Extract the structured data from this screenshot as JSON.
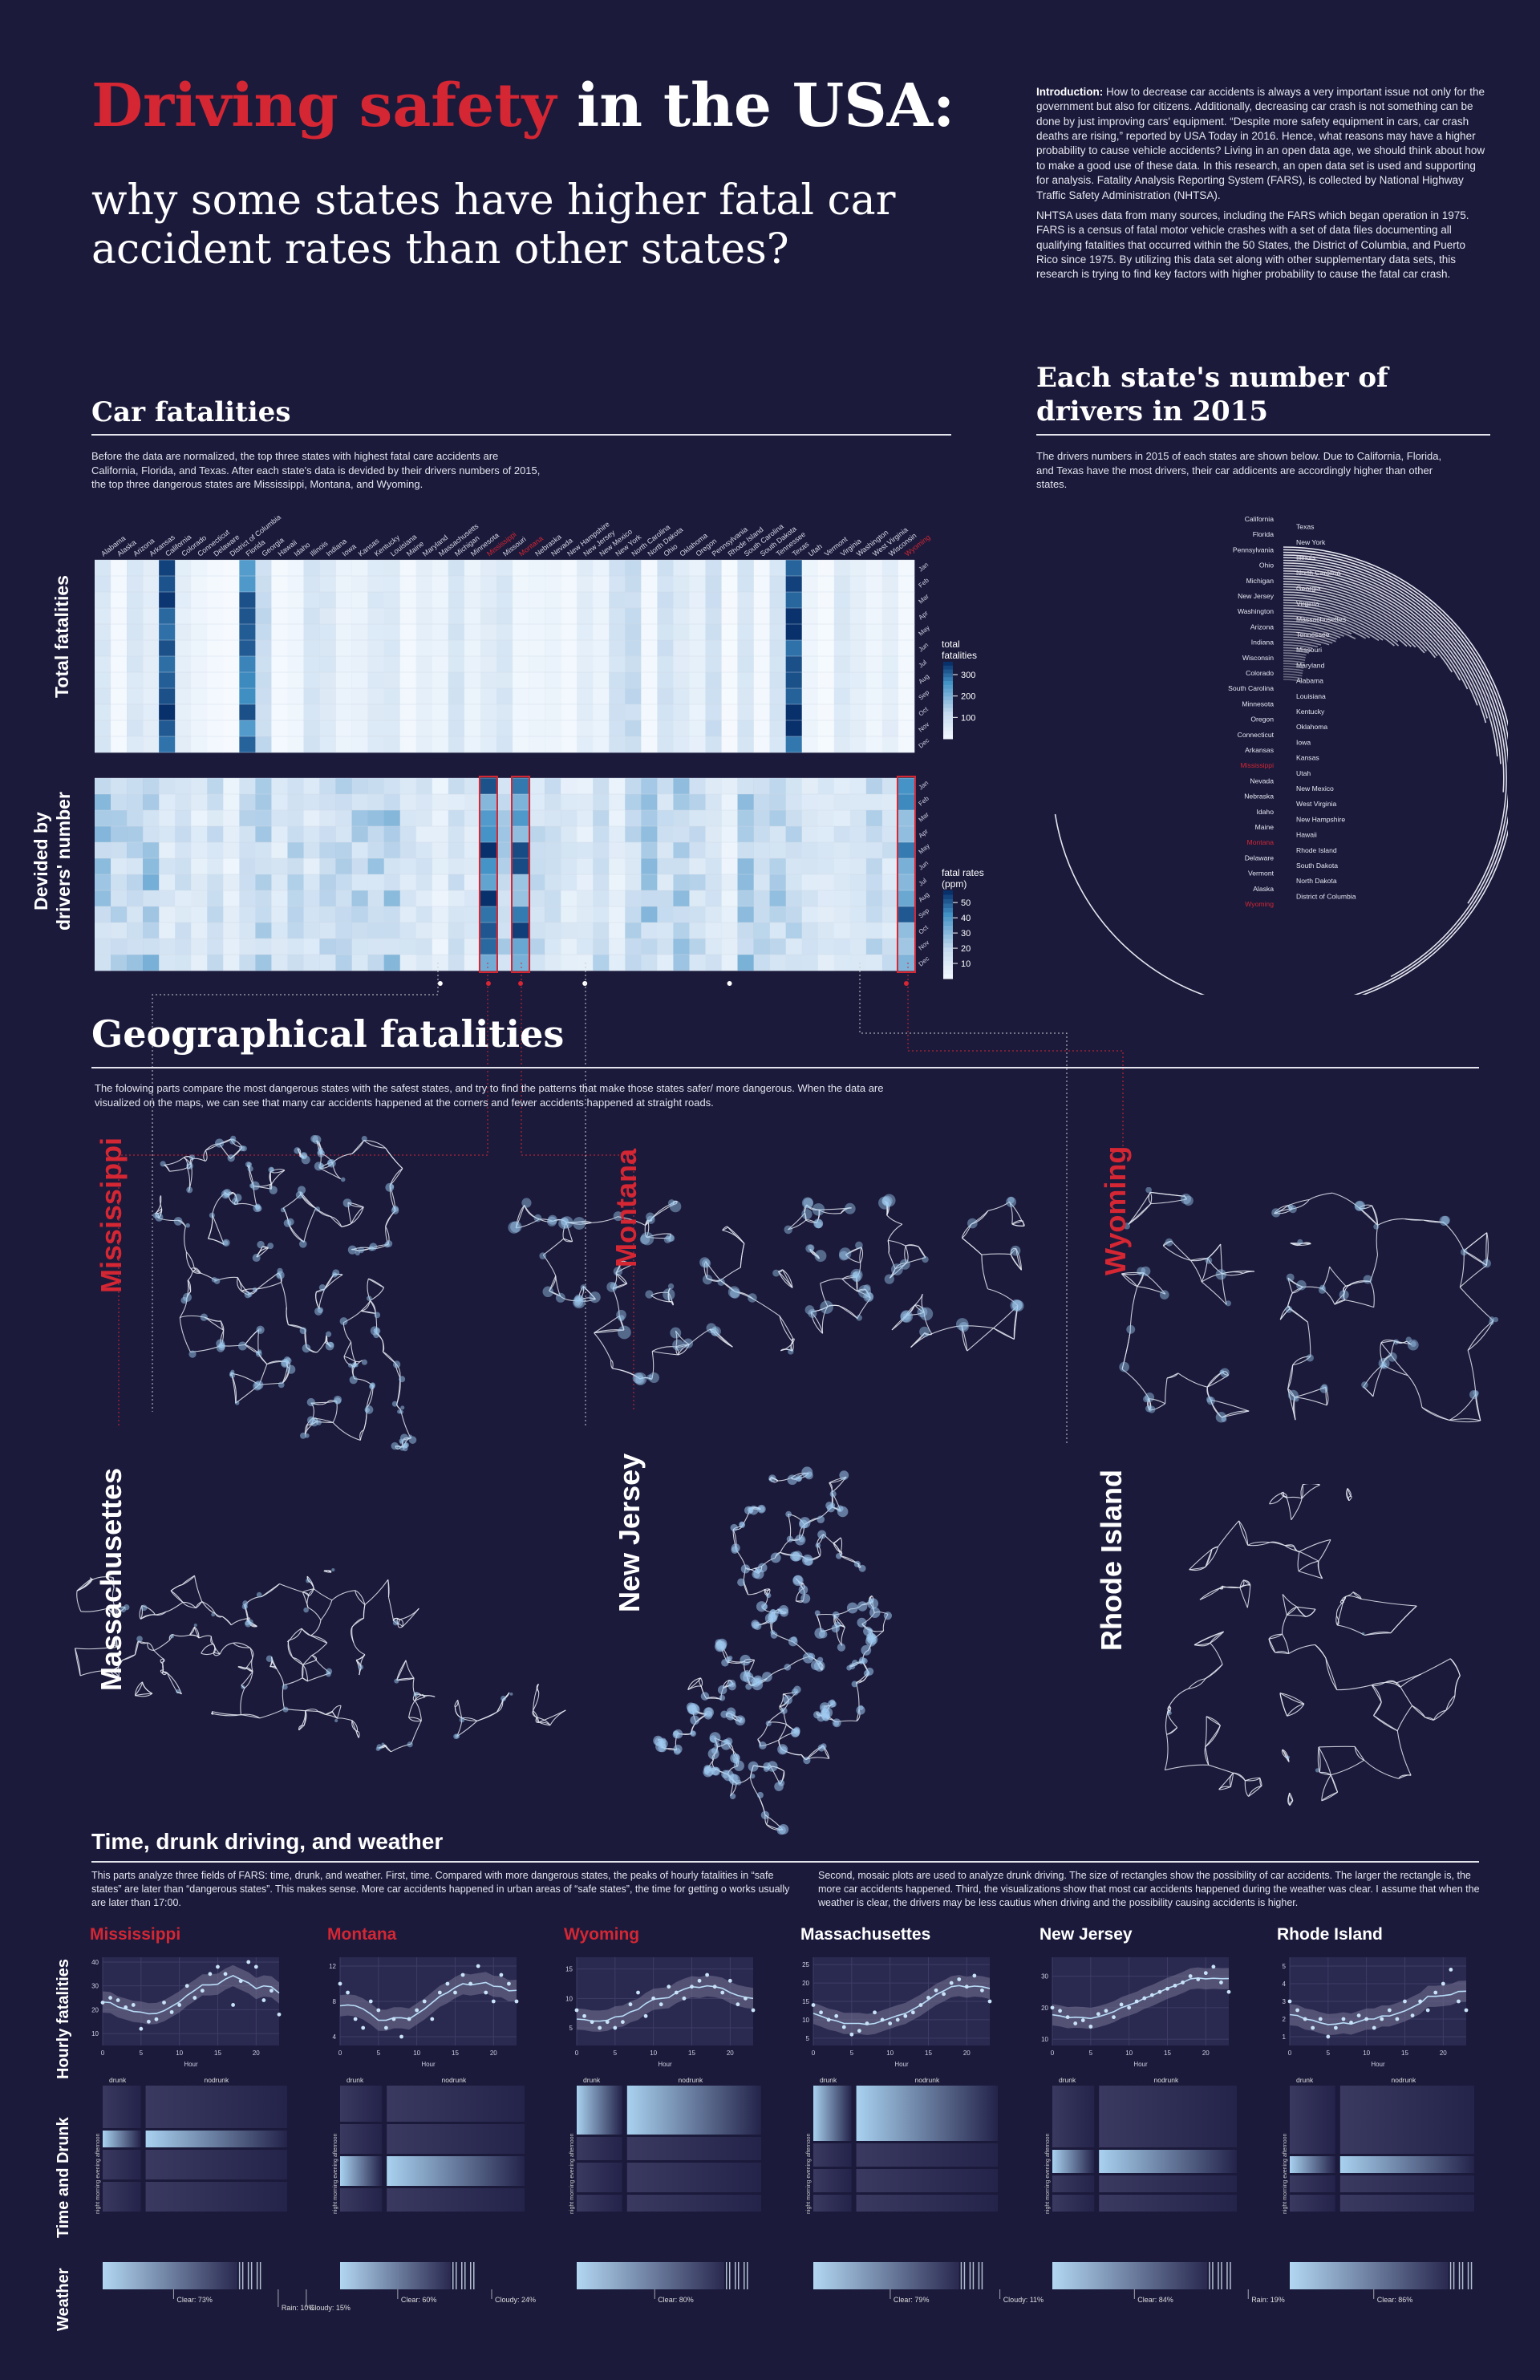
{
  "header": {
    "title_red": "Driving safety",
    "title_white": "in the USA:",
    "subtitle": "why some states have higher fatal car accident rates than other states?"
  },
  "intro": {
    "label": "Introduction:",
    "p1": "How to decrease car accidents is always a very important issue not only for the government but also for citizens. Additionally, decreasing car crash is not something can be done by just improving cars' equipment. “Despite more safety equipment in cars, car crash deaths are rising,” reported by USA Today in 2016. Hence, what reasons may have a higher probability to cause vehicle accidents? Living in an open data age, we should think about how to make a good use of these data. In this research, an open data set is used and supporting for analysis. Fatality Analysis Reporting System (FARS), is collected by National Highway Traffic Safety Administration (NHTSA).",
    "p2": "NHTSA uses data from many sources, including the FARS which began operation in 1975. FARS is a census of fatal motor vehicle crashes with a set of data files documenting all qualifying fatalities that occurred within the 50 States, the District of Columbia, and Puerto Rico since 1975. By utilizing this data set along with other supplementary data sets, this research is trying to find key factors with higher probability to cause the fatal car crash."
  },
  "car_fatalities": {
    "title": "Car fatalities",
    "desc": "Before the data are normalized, the top three states with highest fatal care accidents are California, Florida, and Texas. After each state's data is devided by their drivers numbers of 2015, the top three dangerous states are Mississippi, Montana, and Wyoming.",
    "row_label_total": "Total fatalities",
    "row_label_rate_1": "Devided by",
    "row_label_rate_2": "drivers' number",
    "legend_total_title_1": "total",
    "legend_total_title_2": "fatalities",
    "legend_rate_title_1": "fatal rates",
    "legend_rate_title_2": "(ppm)"
  },
  "drivers": {
    "title_1": "Each state's number of",
    "title_2": "drivers in 2015",
    "desc": "The drivers numbers in 2015 of each states are shown below. Due to California, Florida, and Texas have the most drivers, their car addicents are accordingly higher than other states."
  },
  "geo": {
    "title": "Geographical fatalities",
    "desc": "The folowing parts compare the most dangerous states with the safest states, and try to find the patterns that make those states safer/ more dangerous. When the data are visualized on the maps, we can see that many car accidents happened at the corners and fewer accidents happened at straight roads.",
    "states": [
      "Mississippi",
      "Montana",
      "Wyoming",
      "Massachusettes",
      "New Jersey",
      "Rhode Island"
    ]
  },
  "tdw": {
    "title": "Time, drunk driving, and weather",
    "desc1": "This parts analyze three fields of FARS: time, drunk, and weather. First, time. Compared with more dangerous states, the peaks of hourly fatalities in “safe states” are later than “dangerous states”. This makes sense. More car accidents happened in urban areas of “safe states”, the time for getting o  works usually are later than 17:00.",
    "desc2": "Second, mosaic plots are used to analyze drunk driving. The size of rectangles show the possibility of car accidents.  The larger the rectangle is, the more car accidents happened. Third, the visualizations show that most car accidents happened during the weather was clear. I assume that when the weather is clear, the drivers may be less cautius when driving and the possibility causing accidents is higher.",
    "row_hourly": "Hourly fatalities",
    "row_drunk": "Time and Drunk",
    "row_weather": "Weather",
    "axis_hour": "Hour",
    "drunk_label": "drunk",
    "nodrunk_label": "nodrunk"
  },
  "colors": {
    "background": "#1b1a3b",
    "accent_red": "#d42633",
    "heat_high": "#08519c",
    "heat_low": "#f7fbff"
  },
  "chart_data": [
    {
      "type": "heatmap",
      "name": "total fatalities",
      "states": [
        "Alabama",
        "Alaska",
        "Arizona",
        "Arkansas",
        "California",
        "Colorado",
        "Connecticut",
        "Delaware",
        "District of Columbia",
        "Florida",
        "Georgia",
        "Hawaii",
        "Idaho",
        "Illinois",
        "Indiana",
        "Iowa",
        "Kansas",
        "Kentucky",
        "Louisiana",
        "Maine",
        "Maryland",
        "Massachusetts",
        "Michigan",
        "Minnesota",
        "Mississippi",
        "Missouri",
        "Montana",
        "Nebraska",
        "Nevada",
        "New Hampshire",
        "New Jersey",
        "New Mexico",
        "New York",
        "North Carolina",
        "North Dakota",
        "Ohio",
        "Oklahoma",
        "Oregon",
        "Pennsylvania",
        "Rhode Island",
        "South Carolina",
        "South Dakota",
        "Tennessee",
        "Texas",
        "Utah",
        "Vermont",
        "Virginia",
        "Washington",
        "West Virginia",
        "Wisconsin",
        "Wyoming"
      ],
      "row_labels": [
        "Jan",
        "Feb",
        "Mar",
        "Apr",
        "May",
        "Jun",
        "Jul",
        "Aug",
        "Sep",
        "Oct",
        "Nov",
        "Dec"
      ],
      "legend_ticks": [
        100,
        200,
        300
      ],
      "column_levels": [
        80,
        10,
        80,
        50,
        330,
        50,
        25,
        10,
        3,
        290,
        120,
        10,
        20,
        90,
        75,
        30,
        35,
        70,
        70,
        15,
        45,
        30,
        90,
        35,
        60,
        80,
        20,
        25,
        30,
        12,
        55,
        30,
        95,
        120,
        12,
        100,
        65,
        40,
        110,
        6,
        85,
        12,
        90,
        340,
        25,
        6,
        70,
        50,
        25,
        50,
        12
      ]
    },
    {
      "type": "heatmap",
      "name": "fatal rates",
      "states": [
        "Alabama",
        "Alaska",
        "Arizona",
        "Arkansas",
        "California",
        "Colorado",
        "Connecticut",
        "Delaware",
        "District of Columbia",
        "Florida",
        "Georgia",
        "Hawaii",
        "Idaho",
        "Illinois",
        "Indiana",
        "Iowa",
        "Kansas",
        "Kentucky",
        "Louisiana",
        "Maine",
        "Maryland",
        "Massachusetts",
        "Michigan",
        "Minnesota",
        "Mississippi",
        "Missouri",
        "Montana",
        "Nebraska",
        "Nevada",
        "New Hampshire",
        "New Jersey",
        "New Mexico",
        "New York",
        "North Carolina",
        "North Dakota",
        "Ohio",
        "Oklahoma",
        "Oregon",
        "Pennsylvania",
        "Rhode Island",
        "South Carolina",
        "South Dakota",
        "Tennessee",
        "Texas",
        "Utah",
        "Vermont",
        "Virginia",
        "Washington",
        "West Virginia",
        "Wisconsin",
        "Wyoming"
      ],
      "row_labels": [
        "Jan",
        "Feb",
        "Mar",
        "Apr",
        "May",
        "Jun",
        "Jul",
        "Aug",
        "Sep",
        "Oct",
        "Nov",
        "Dec"
      ],
      "legend_ticks": [
        10,
        20,
        30,
        40,
        50
      ],
      "highlighted": [
        "Mississippi",
        "Montana",
        "Wyoming"
      ],
      "column_levels": [
        22,
        18,
        20,
        24,
        12,
        14,
        8,
        15,
        6,
        18,
        19,
        10,
        20,
        12,
        16,
        18,
        19,
        20,
        22,
        12,
        12,
        6,
        14,
        10,
        42,
        20,
        40,
        16,
        14,
        10,
        9,
        18,
        7,
        18,
        22,
        14,
        21,
        16,
        12,
        6,
        24,
        18,
        20,
        18,
        12,
        10,
        13,
        10,
        18,
        14,
        38
      ]
    },
    {
      "type": "bar",
      "name": "drivers in 2015",
      "categories": [
        "California",
        "Texas",
        "Florida",
        "New York",
        "Pennsylvania",
        "Illinois",
        "Ohio",
        "North Carolina",
        "Michigan",
        "Georgia",
        "New Jersey",
        "Virginia",
        "Washington",
        "Massachusettes",
        "Arizona",
        "Tennessee",
        "Indiana",
        "Missouri",
        "Wisconsin",
        "Maryland",
        "Colorado",
        "Alabama",
        "South Carolina",
        "Louisiana",
        "Minnesota",
        "Kentucky",
        "Oregon",
        "Oklahoma",
        "Connecticut",
        "Iowa",
        "Arkansas",
        "Kansas",
        "Mississippi",
        "Utah",
        "Nevada",
        "New Mexico",
        "Nebraska",
        "West Virginia",
        "Idaho",
        "New Hampshire",
        "Maine",
        "Hawaii",
        "Montana",
        "Rhode Island",
        "Delaware",
        "South Dakota",
        "Vermont",
        "North Dakota",
        "Alaska",
        "District of Columbia",
        "Wyoming"
      ],
      "values": [
        24.8,
        15.9,
        14.4,
        11.8,
        8.9,
        8.2,
        8.0,
        7.0,
        7.1,
        6.6,
        6.1,
        5.8,
        5.5,
        4.9,
        4.9,
        4.6,
        4.6,
        4.3,
        4.2,
        4.1,
        3.8,
        3.9,
        3.8,
        3.4,
        3.3,
        3.0,
        2.9,
        2.4,
        2.6,
        2.2,
        2.1,
        2.0,
        2.0,
        1.9,
        1.8,
        1.5,
        1.4,
        1.2,
        1.2,
        1.1,
        1.0,
        0.9,
        0.8,
        0.8,
        0.7,
        0.6,
        0.5,
        0.5,
        0.5,
        0.5,
        0.4
      ]
    },
    {
      "type": "scatter",
      "name": "hourly fatalities",
      "panels": [
        {
          "state": "Mississippi",
          "red": true,
          "yticks": [
            10,
            20,
            30,
            40
          ],
          "ylim": [
            5,
            42
          ],
          "x": [
            0,
            1,
            2,
            3,
            4,
            5,
            6,
            7,
            8,
            9,
            10,
            11,
            12,
            13,
            14,
            15,
            16,
            17,
            18,
            19,
            20,
            21,
            22,
            23
          ],
          "y": [
            23,
            25,
            24,
            21,
            22,
            12,
            15,
            16,
            23,
            19,
            22,
            30,
            25,
            28,
            35,
            38,
            35,
            22,
            32,
            40,
            38,
            24,
            28,
            18
          ]
        },
        {
          "state": "Montana",
          "red": true,
          "yticks": [
            4,
            8,
            12
          ],
          "ylim": [
            3,
            13
          ],
          "x": [
            0,
            1,
            2,
            3,
            4,
            5,
            6,
            7,
            8,
            9,
            10,
            11,
            12,
            13,
            14,
            15,
            16,
            17,
            18,
            19,
            20,
            21,
            22,
            23
          ],
          "y": [
            10,
            9,
            6,
            5,
            8,
            7,
            5,
            6,
            4,
            6,
            7,
            8,
            6,
            9,
            10,
            9,
            11,
            10,
            12,
            9,
            8,
            11,
            10,
            8
          ]
        },
        {
          "state": "Wyoming",
          "red": true,
          "yticks": [
            5,
            10,
            15
          ],
          "ylim": [
            2,
            17
          ],
          "x": [
            0,
            1,
            2,
            3,
            4,
            5,
            6,
            7,
            8,
            9,
            10,
            11,
            12,
            13,
            14,
            15,
            16,
            17,
            18,
            19,
            20,
            21,
            22,
            23
          ],
          "y": [
            8,
            7,
            6,
            5,
            6,
            5,
            6,
            9,
            11,
            7,
            10,
            9,
            12,
            11,
            10,
            12,
            13,
            14,
            12,
            11,
            13,
            9,
            10,
            8
          ]
        },
        {
          "state": "Massachusettes",
          "red": false,
          "yticks": [
            5,
            10,
            15,
            20,
            25
          ],
          "ylim": [
            3,
            27
          ],
          "x": [
            0,
            1,
            2,
            3,
            4,
            5,
            6,
            7,
            8,
            9,
            10,
            11,
            12,
            13,
            14,
            15,
            16,
            17,
            18,
            19,
            20,
            21,
            22,
            23
          ],
          "y": [
            14,
            12,
            10,
            11,
            8,
            6,
            7,
            9,
            12,
            10,
            9,
            10,
            11,
            12,
            14,
            16,
            18,
            17,
            20,
            21,
            19,
            22,
            18,
            15
          ]
        },
        {
          "state": "New Jersey",
          "red": false,
          "yticks": [
            10,
            20,
            30
          ],
          "ylim": [
            8,
            36
          ],
          "x": [
            0,
            1,
            2,
            3,
            4,
            5,
            6,
            7,
            8,
            9,
            10,
            11,
            12,
            13,
            14,
            15,
            16,
            17,
            18,
            19,
            20,
            21,
            22,
            23
          ],
          "y": [
            20,
            19,
            17,
            15,
            16,
            14,
            18,
            19,
            17,
            21,
            20,
            22,
            23,
            24,
            25,
            26,
            27,
            28,
            30,
            29,
            31,
            33,
            28,
            25
          ]
        },
        {
          "state": "Rhode Island",
          "red": false,
          "yticks": [
            1,
            2,
            3,
            4,
            5
          ],
          "ylim": [
            0.5,
            5.5
          ],
          "x": [
            0,
            1,
            2,
            3,
            4,
            5,
            6,
            7,
            8,
            9,
            10,
            11,
            12,
            13,
            14,
            15,
            16,
            17,
            18,
            19,
            20,
            21,
            22,
            23
          ],
          "y": [
            3,
            2.5,
            2,
            1.5,
            2,
            1,
            1.5,
            2,
            1.8,
            2.2,
            2,
            1.5,
            2,
            2.5,
            2,
            3,
            2.2,
            3,
            2.5,
            3.5,
            4,
            4.8,
            3,
            2.5
          ]
        }
      ],
      "xticks": [
        0,
        5,
        10,
        15,
        20
      ]
    },
    {
      "type": "mosaic",
      "name": "time and drunk",
      "categories_x": [
        "drunk",
        "nodrunk"
      ],
      "categories_y": [
        "night",
        "morning",
        "evening",
        "afternoon"
      ]
    },
    {
      "type": "bar",
      "name": "weather",
      "panels": [
        {
          "state": "Mississippi",
          "labels": [
            {
              "text": "Clear: 73%",
              "share": 73
            },
            {
              "text": "Rain: 10%",
              "share": 10
            },
            {
              "text": "Cloudy: 15%",
              "share": 15
            }
          ]
        },
        {
          "state": "Montana",
          "labels": [
            {
              "text": "Clear: 60%",
              "share": 60
            },
            {
              "text": "Cloudy: 24%",
              "share": 24
            }
          ]
        },
        {
          "state": "Wyoming",
          "labels": [
            {
              "text": "Clear: 80%",
              "share": 80
            }
          ]
        },
        {
          "state": "Massachusettes",
          "labels": [
            {
              "text": "Clear: 79%",
              "share": 79
            },
            {
              "text": "Cloudy: 11%",
              "share": 11
            }
          ]
        },
        {
          "state": "New Jersey",
          "labels": [
            {
              "text": "Clear: 84%",
              "share": 84
            },
            {
              "text": "Rain: 19%",
              "share": 19
            }
          ]
        },
        {
          "state": "Rhode Island",
          "labels": [
            {
              "text": "Clear: 86%",
              "share": 86
            }
          ]
        }
      ]
    }
  ]
}
